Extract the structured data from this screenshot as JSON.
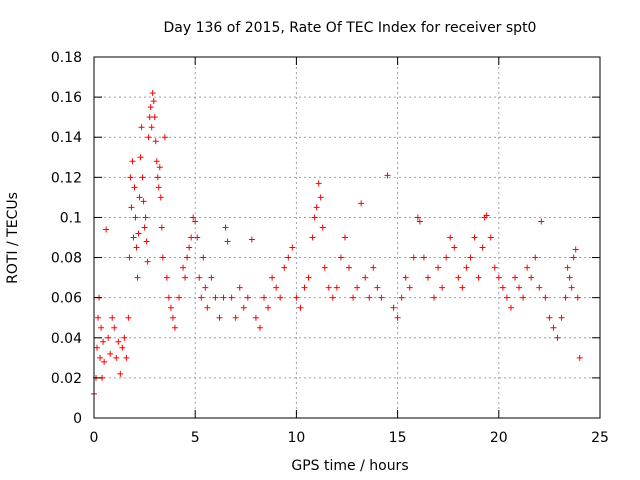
{
  "chart_data": {
    "type": "scatter",
    "title": "Day 136 of 2015, Rate Of TEC Index for receiver spt0",
    "xlabel": "GPS time / hours",
    "ylabel": "ROTI / TECUs",
    "xlim": [
      0,
      25
    ],
    "ylim": [
      0,
      0.18
    ],
    "xticks": [
      0,
      5,
      10,
      15,
      20,
      25
    ],
    "xtick_labels": [
      "0",
      "5",
      "10",
      "15",
      "20",
      "25"
    ],
    "yticks": [
      0,
      0.02,
      0.04,
      0.06,
      0.08,
      0.1,
      0.12,
      0.14,
      0.16,
      0.18
    ],
    "ytick_labels": [
      "0",
      "0.02",
      "0.04",
      "0.06",
      "0.08",
      "0.1",
      "0.12",
      "0.14",
      "0.16",
      "0.18"
    ],
    "grid": true,
    "marker": "+",
    "marker_color": "#ff0000",
    "series": [
      {
        "name": "ROTI",
        "points": [
          [
            0.0,
            0.012
          ],
          [
            0.1,
            0.02
          ],
          [
            0.15,
            0.035
          ],
          [
            0.2,
            0.05
          ],
          [
            0.25,
            0.06
          ],
          [
            0.3,
            0.03
          ],
          [
            0.35,
            0.045
          ],
          [
            0.4,
            0.02
          ],
          [
            0.45,
            0.038
          ],
          [
            0.5,
            0.028
          ],
          [
            0.6,
            0.094
          ],
          [
            0.7,
            0.04
          ],
          [
            0.8,
            0.032
          ],
          [
            0.9,
            0.05
          ],
          [
            1.0,
            0.045
          ],
          [
            1.1,
            0.03
          ],
          [
            1.2,
            0.038
          ],
          [
            1.3,
            0.022
          ],
          [
            1.4,
            0.035
          ],
          [
            1.5,
            0.04
          ],
          [
            1.6,
            0.03
          ],
          [
            1.7,
            0.05
          ],
          [
            1.75,
            0.08
          ],
          [
            1.8,
            0.12
          ],
          [
            1.85,
            0.105
          ],
          [
            1.9,
            0.128
          ],
          [
            1.95,
            0.09
          ],
          [
            2.0,
            0.115
          ],
          [
            2.05,
            0.1
          ],
          [
            2.1,
            0.085
          ],
          [
            2.15,
            0.07
          ],
          [
            2.2,
            0.092
          ],
          [
            2.25,
            0.11
          ],
          [
            2.3,
            0.13
          ],
          [
            2.35,
            0.145
          ],
          [
            2.4,
            0.12
          ],
          [
            2.45,
            0.108
          ],
          [
            2.5,
            0.095
          ],
          [
            2.55,
            0.1
          ],
          [
            2.6,
            0.088
          ],
          [
            2.65,
            0.078
          ],
          [
            2.7,
            0.14
          ],
          [
            2.75,
            0.15
          ],
          [
            2.8,
            0.155
          ],
          [
            2.85,
            0.145
          ],
          [
            2.9,
            0.162
          ],
          [
            2.95,
            0.158
          ],
          [
            3.0,
            0.15
          ],
          [
            3.05,
            0.138
          ],
          [
            3.1,
            0.128
          ],
          [
            3.15,
            0.12
          ],
          [
            3.2,
            0.115
          ],
          [
            3.25,
            0.125
          ],
          [
            3.3,
            0.11
          ],
          [
            3.35,
            0.095
          ],
          [
            3.4,
            0.08
          ],
          [
            3.5,
            0.14
          ],
          [
            3.6,
            0.07
          ],
          [
            3.7,
            0.06
          ],
          [
            3.8,
            0.055
          ],
          [
            3.9,
            0.05
          ],
          [
            4.0,
            0.045
          ],
          [
            4.2,
            0.06
          ],
          [
            4.4,
            0.075
          ],
          [
            4.5,
            0.07
          ],
          [
            4.6,
            0.08
          ],
          [
            4.7,
            0.085
          ],
          [
            4.8,
            0.09
          ],
          [
            4.9,
            0.1
          ],
          [
            5.0,
            0.098
          ],
          [
            5.1,
            0.09
          ],
          [
            5.2,
            0.07
          ],
          [
            5.3,
            0.06
          ],
          [
            5.4,
            0.08
          ],
          [
            5.5,
            0.065
          ],
          [
            5.6,
            0.055
          ],
          [
            5.8,
            0.07
          ],
          [
            6.0,
            0.06
          ],
          [
            6.2,
            0.05
          ],
          [
            6.4,
            0.06
          ],
          [
            6.5,
            0.095
          ],
          [
            6.6,
            0.088
          ],
          [
            6.8,
            0.06
          ],
          [
            7.0,
            0.05
          ],
          [
            7.2,
            0.065
          ],
          [
            7.4,
            0.055
          ],
          [
            7.6,
            0.06
          ],
          [
            7.8,
            0.089
          ],
          [
            8.0,
            0.05
          ],
          [
            8.2,
            0.045
          ],
          [
            8.4,
            0.06
          ],
          [
            8.6,
            0.055
          ],
          [
            8.8,
            0.07
          ],
          [
            9.0,
            0.065
          ],
          [
            9.2,
            0.06
          ],
          [
            9.4,
            0.075
          ],
          [
            9.6,
            0.08
          ],
          [
            9.8,
            0.085
          ],
          [
            10.0,
            0.06
          ],
          [
            10.2,
            0.055
          ],
          [
            10.4,
            0.065
          ],
          [
            10.6,
            0.07
          ],
          [
            10.8,
            0.09
          ],
          [
            10.9,
            0.1
          ],
          [
            11.0,
            0.105
          ],
          [
            11.1,
            0.117
          ],
          [
            11.2,
            0.11
          ],
          [
            11.3,
            0.095
          ],
          [
            11.4,
            0.075
          ],
          [
            11.6,
            0.065
          ],
          [
            11.8,
            0.06
          ],
          [
            12.0,
            0.065
          ],
          [
            12.2,
            0.08
          ],
          [
            12.4,
            0.09
          ],
          [
            12.6,
            0.075
          ],
          [
            12.8,
            0.06
          ],
          [
            13.0,
            0.065
          ],
          [
            13.2,
            0.107
          ],
          [
            13.4,
            0.07
          ],
          [
            13.6,
            0.06
          ],
          [
            13.8,
            0.075
          ],
          [
            14.0,
            0.065
          ],
          [
            14.2,
            0.06
          ],
          [
            14.5,
            0.121
          ],
          [
            14.8,
            0.055
          ],
          [
            15.0,
            0.05
          ],
          [
            15.2,
            0.06
          ],
          [
            15.4,
            0.07
          ],
          [
            15.6,
            0.065
          ],
          [
            15.8,
            0.08
          ],
          [
            16.0,
            0.1
          ],
          [
            16.1,
            0.098
          ],
          [
            16.3,
            0.08
          ],
          [
            16.5,
            0.07
          ],
          [
            16.8,
            0.06
          ],
          [
            17.0,
            0.075
          ],
          [
            17.2,
            0.065
          ],
          [
            17.4,
            0.08
          ],
          [
            17.6,
            0.09
          ],
          [
            17.8,
            0.085
          ],
          [
            18.0,
            0.07
          ],
          [
            18.2,
            0.065
          ],
          [
            18.4,
            0.075
          ],
          [
            18.6,
            0.08
          ],
          [
            18.8,
            0.09
          ],
          [
            19.0,
            0.07
          ],
          [
            19.2,
            0.085
          ],
          [
            19.3,
            0.1
          ],
          [
            19.4,
            0.101
          ],
          [
            19.6,
            0.09
          ],
          [
            19.8,
            0.075
          ],
          [
            20.0,
            0.07
          ],
          [
            20.2,
            0.065
          ],
          [
            20.4,
            0.06
          ],
          [
            20.6,
            0.055
          ],
          [
            20.8,
            0.07
          ],
          [
            21.0,
            0.065
          ],
          [
            21.2,
            0.06
          ],
          [
            21.4,
            0.075
          ],
          [
            21.6,
            0.07
          ],
          [
            21.8,
            0.08
          ],
          [
            22.0,
            0.065
          ],
          [
            22.1,
            0.098
          ],
          [
            22.3,
            0.06
          ],
          [
            22.5,
            0.05
          ],
          [
            22.7,
            0.045
          ],
          [
            22.9,
            0.04
          ],
          [
            23.1,
            0.05
          ],
          [
            23.3,
            0.06
          ],
          [
            23.4,
            0.075
          ],
          [
            23.5,
            0.07
          ],
          [
            23.6,
            0.065
          ],
          [
            23.7,
            0.08
          ],
          [
            23.8,
            0.084
          ],
          [
            23.9,
            0.06
          ],
          [
            24.0,
            0.03
          ]
        ]
      }
    ]
  }
}
